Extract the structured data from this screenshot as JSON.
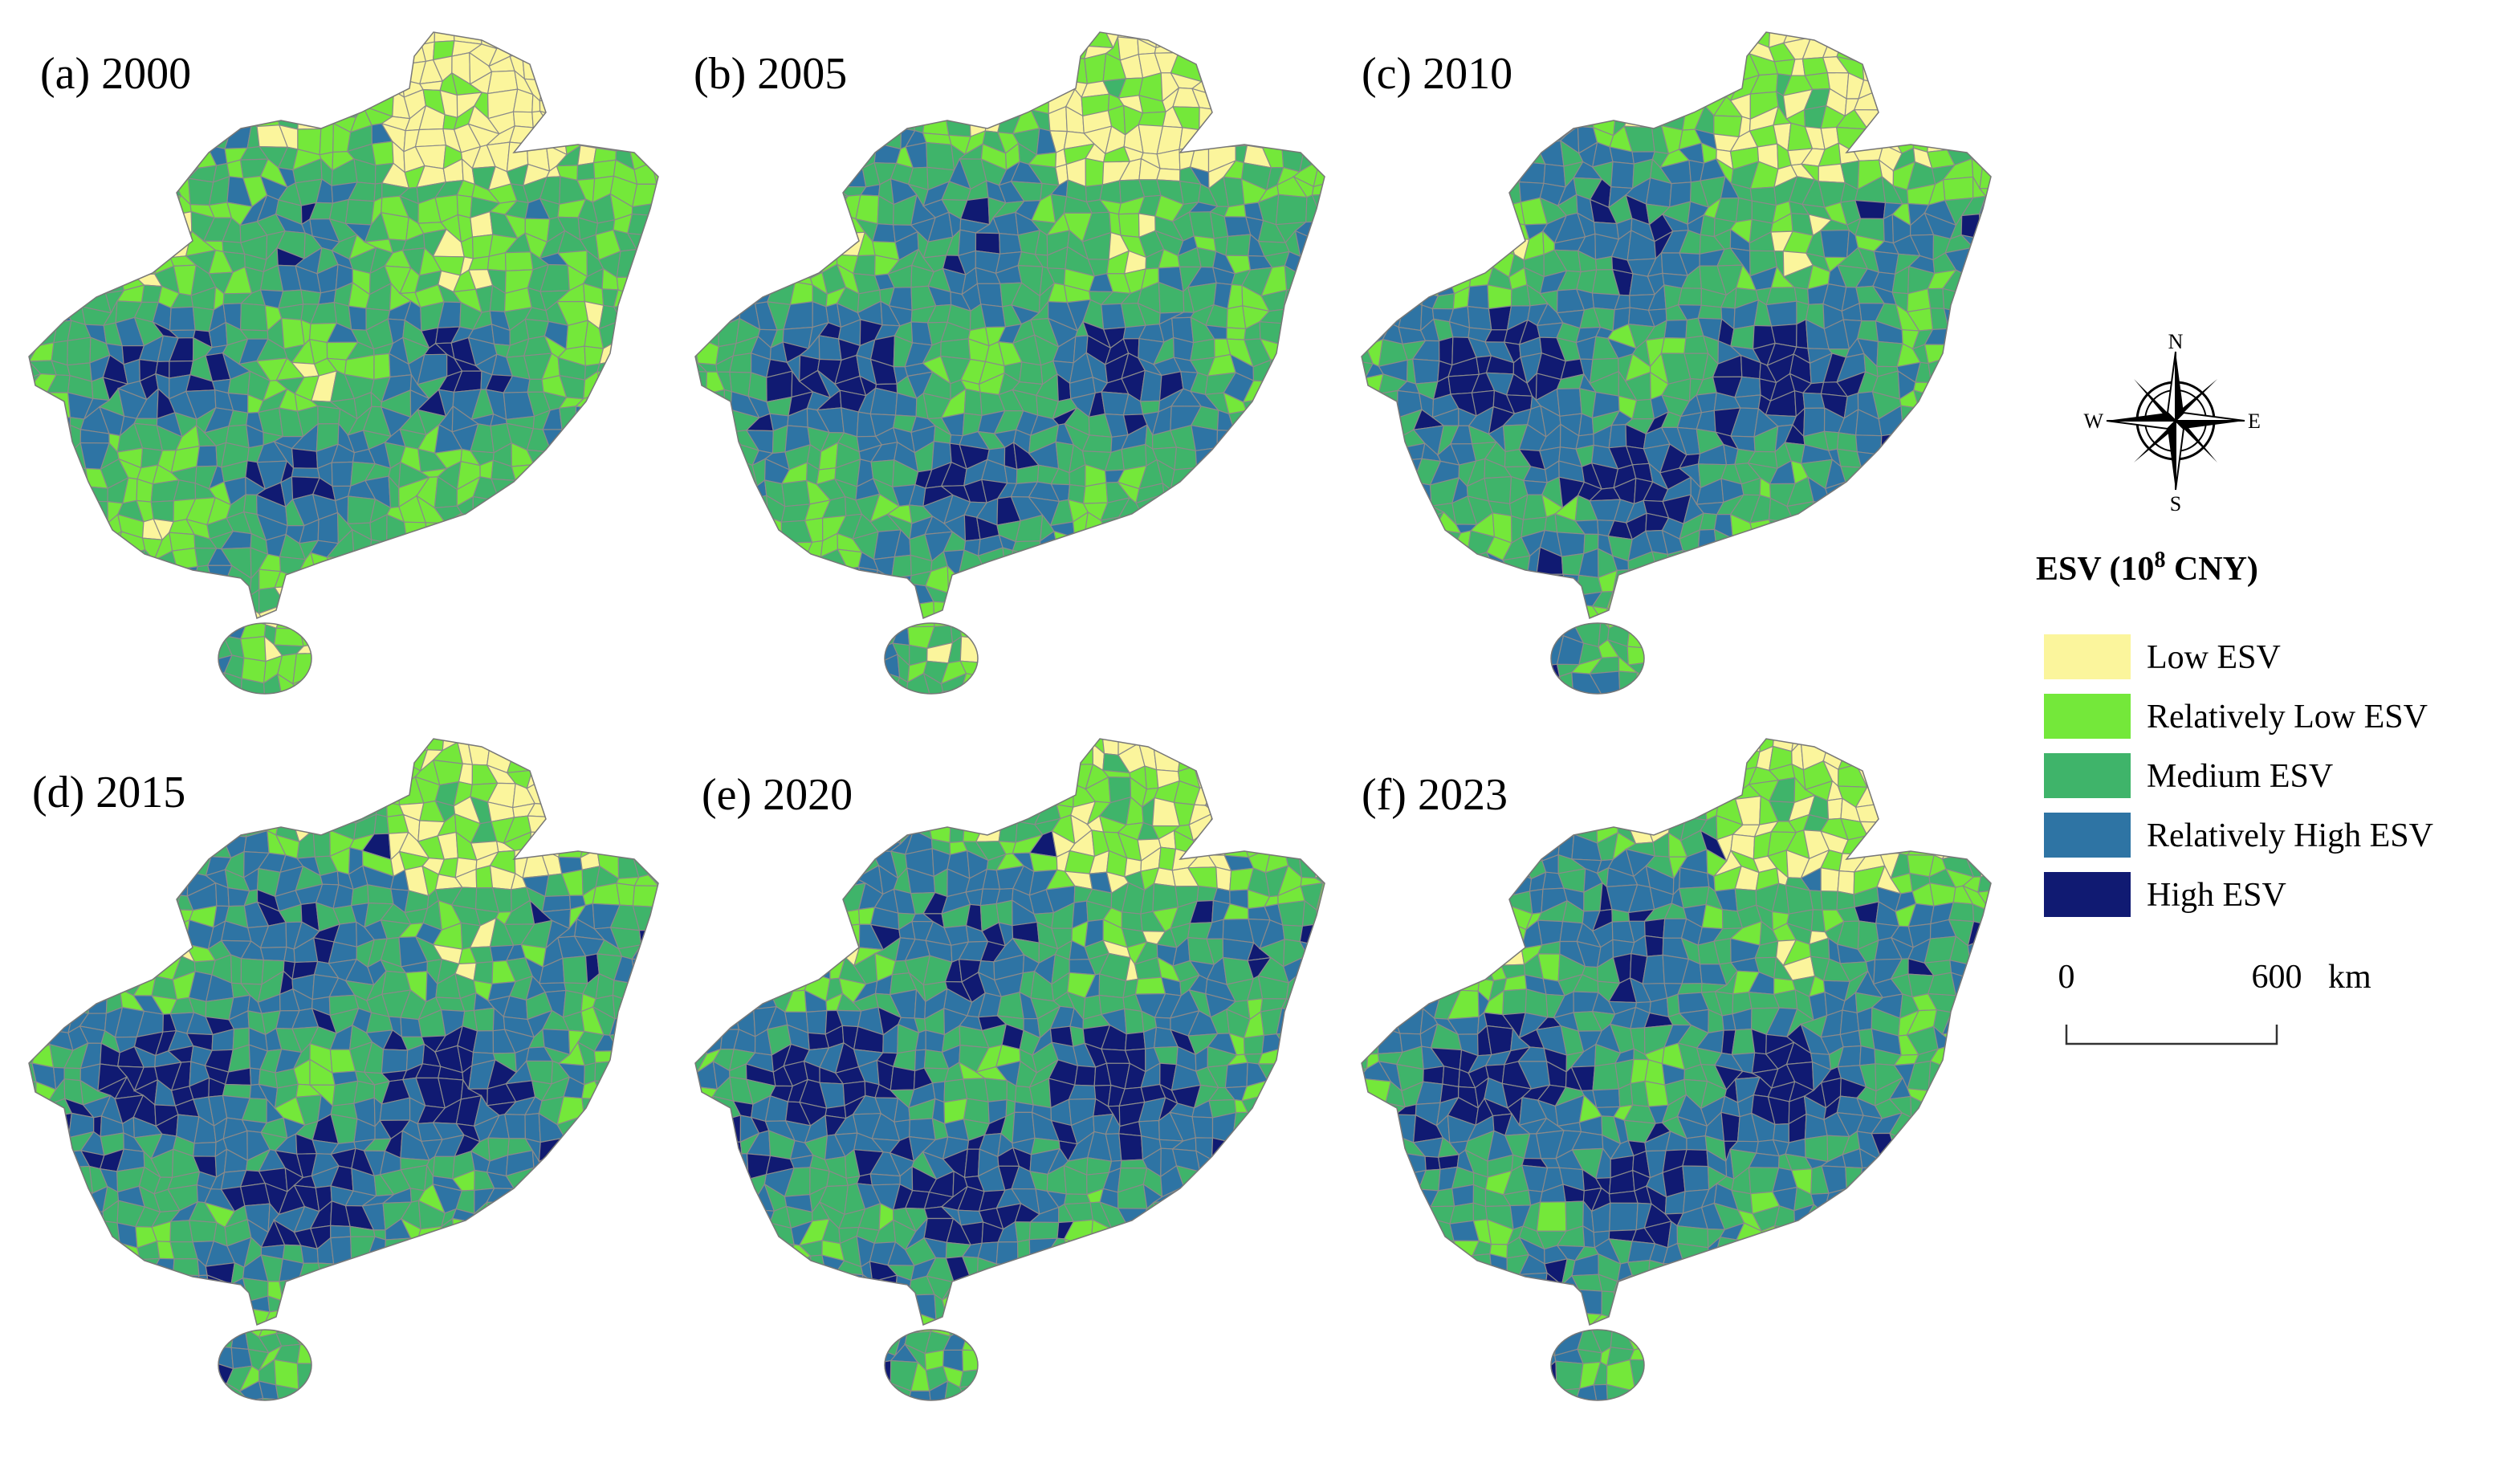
{
  "panels": [
    {
      "label": "(a) 2000"
    },
    {
      "label": "(b) 2005"
    },
    {
      "label": "(c) 2010"
    },
    {
      "label": "(d) 2015"
    },
    {
      "label": "(e) 2020"
    },
    {
      "label": "(f) 2023"
    }
  ],
  "legend": {
    "title": "ESV (10",
    "title_superscript": "8",
    "title_end": " CNY)",
    "items": [
      {
        "label": "Low ESV",
        "color": "#fbf59c"
      },
      {
        "label": "Relatively Low ESV",
        "color": "#74e83a"
      },
      {
        "label": "Medium ESV",
        "color": "#3fb46a"
      },
      {
        "label": "Relatively High ESV",
        "color": "#2e74a4"
      },
      {
        "label": "High ESV",
        "color": "#101a72"
      }
    ]
  },
  "compass": {
    "north": "N",
    "south": "S",
    "east": "E",
    "west": "W"
  },
  "scale_bar": {
    "start": "0",
    "end": "600",
    "unit": "km"
  }
}
